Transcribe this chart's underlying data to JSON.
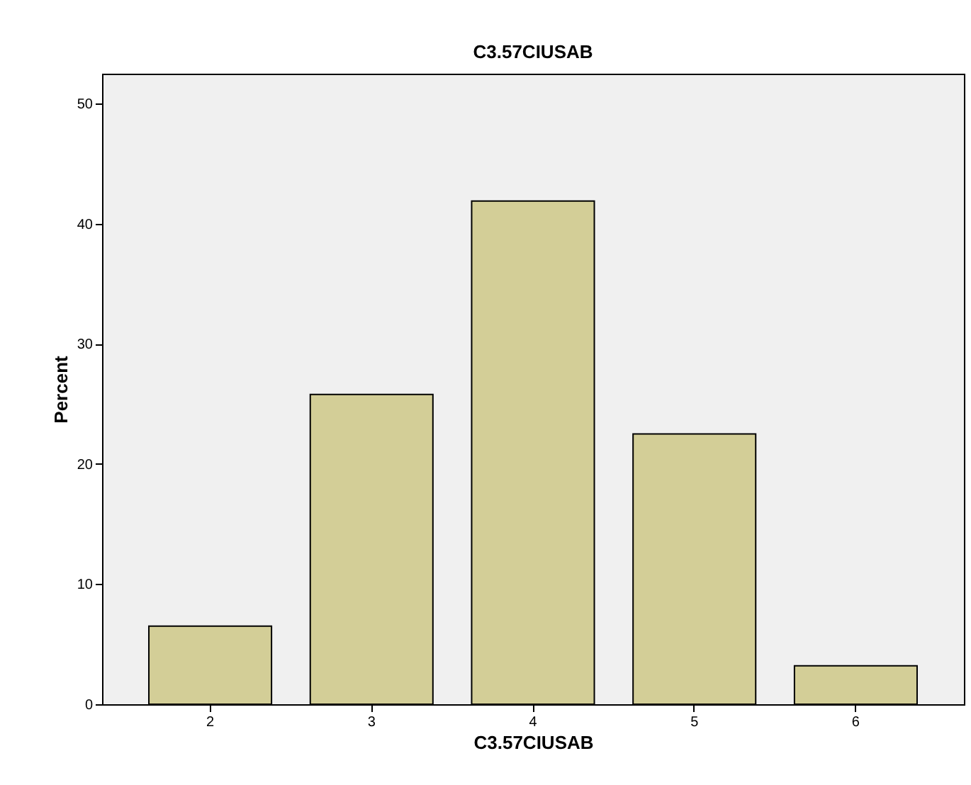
{
  "chart_data": {
    "type": "bar",
    "title": "C3.57CIUSAB",
    "xlabel": "C3.57CIUSAB",
    "ylabel": "Percent",
    "categories": [
      "2",
      "3",
      "4",
      "5",
      "6"
    ],
    "values": [
      6.5,
      25.8,
      41.9,
      22.5,
      3.2
    ],
    "color": "#d3ce97",
    "ylim": [
      0,
      52.5
    ],
    "yticks": [
      0,
      10,
      20,
      30,
      40,
      50
    ],
    "grid": false
  }
}
